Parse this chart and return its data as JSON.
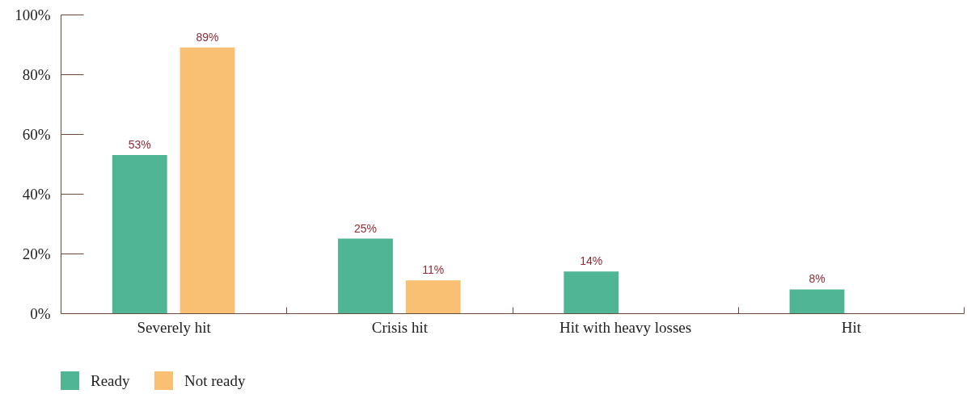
{
  "chart_data": {
    "type": "bar",
    "categories": [
      "Severely hit",
      "Crisis hit",
      "Hit with heavy losses",
      "Hit"
    ],
    "series": [
      {
        "name": "Ready",
        "color": "#50b595",
        "values": [
          53,
          25,
          14,
          8
        ],
        "value_labels": [
          "53%",
          "25%",
          "14%",
          "8%"
        ]
      },
      {
        "name": "Not ready",
        "color": "#f9c074",
        "values": [
          89,
          11,
          null,
          null
        ],
        "value_labels": [
          "89%",
          "11%",
          null,
          null
        ]
      }
    ],
    "ylim": [
      0,
      100
    ],
    "yticks": [
      {
        "value": 0,
        "label": "0%"
      },
      {
        "value": 20,
        "label": "20%"
      },
      {
        "value": 40,
        "label": "40%"
      },
      {
        "value": 60,
        "label": "60%"
      },
      {
        "value": 80,
        "label": "80%"
      },
      {
        "value": 100,
        "label": "100%"
      }
    ],
    "grid": false,
    "legend": "bottom left"
  }
}
